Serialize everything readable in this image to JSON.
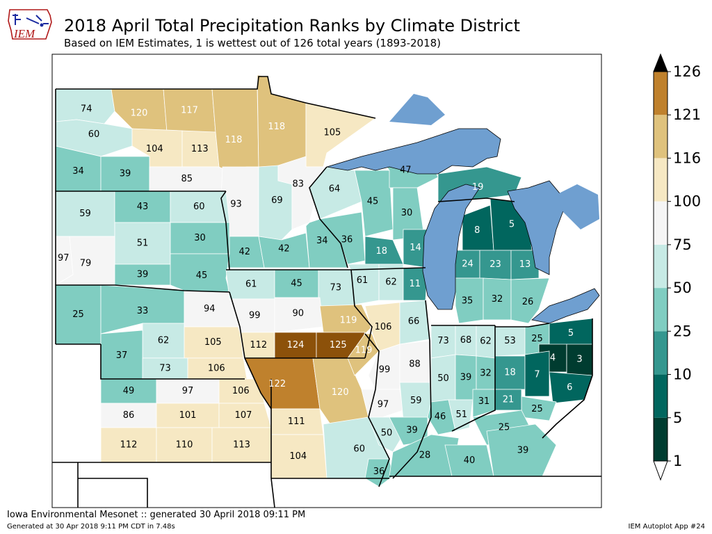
{
  "header": {
    "logo_text": "IEM",
    "title": "2018 April Total Precipitation Ranks by Climate District",
    "subtitle": "Based on IEM Estimates, 1 is wettest out of 126 total years (1893-2018)"
  },
  "footer": {
    "source": "Iowa Environmental Mesonet :: generated 30 April 2018 09:11 PM",
    "generated": "Generated at 30 Apr 2018 9:11 PM CDT in 7.48s",
    "app": "IEM Autoplot App #24"
  },
  "colors": {
    "lake": "#6f9fd0",
    "border": "#000000",
    "bins": [
      "#003c30",
      "#01665e",
      "#35978f",
      "#80cdc1",
      "#c7eae5",
      "#f5f5f5",
      "#f6e8c3",
      "#dfc27d",
      "#bf812d",
      "#8c510a",
      "#543005"
    ]
  },
  "colorbar": {
    "ticks": [
      "1",
      "5",
      "10",
      "25",
      "50",
      "75",
      "100",
      "116",
      "121",
      "126"
    ],
    "extend": "both"
  },
  "districts": [
    {
      "state": "ND",
      "rank": 74
    },
    {
      "state": "ND",
      "rank": 120
    },
    {
      "state": "ND",
      "rank": 117
    },
    {
      "state": "ND",
      "rank": 60
    },
    {
      "state": "ND",
      "rank": 104
    },
    {
      "state": "ND",
      "rank": 113
    },
    {
      "state": "ND",
      "rank": 34
    },
    {
      "state": "ND",
      "rank": 39
    },
    {
      "state": "ND",
      "rank": 85
    },
    {
      "state": "MN",
      "rank": 118
    },
    {
      "state": "MN",
      "rank": 118
    },
    {
      "state": "MN",
      "rank": 105
    },
    {
      "state": "MN",
      "rank": 93
    },
    {
      "state": "MN",
      "rank": 69
    },
    {
      "state": "MN",
      "rank": 83
    },
    {
      "state": "MN",
      "rank": 42
    },
    {
      "state": "MN",
      "rank": 42
    },
    {
      "state": "MN",
      "rank": 34
    },
    {
      "state": "SD",
      "rank": 59
    },
    {
      "state": "SD",
      "rank": 43
    },
    {
      "state": "SD",
      "rank": 60
    },
    {
      "state": "SD",
      "rank": 51
    },
    {
      "state": "SD",
      "rank": 30
    },
    {
      "state": "SD",
      "rank": 97
    },
    {
      "state": "SD",
      "rank": 79
    },
    {
      "state": "SD",
      "rank": 39
    },
    {
      "state": "SD",
      "rank": 45
    },
    {
      "state": "NE",
      "rank": 25
    },
    {
      "state": "NE",
      "rank": 33
    },
    {
      "state": "NE",
      "rank": 94
    },
    {
      "state": "NE",
      "rank": 62
    },
    {
      "state": "NE",
      "rank": 105
    },
    {
      "state": "NE",
      "rank": 37
    },
    {
      "state": "NE",
      "rank": 73
    },
    {
      "state": "NE",
      "rank": 106
    },
    {
      "state": "KS",
      "rank": 49
    },
    {
      "state": "KS",
      "rank": 97
    },
    {
      "state": "KS",
      "rank": 106
    },
    {
      "state": "KS",
      "rank": 86
    },
    {
      "state": "KS",
      "rank": 101
    },
    {
      "state": "KS",
      "rank": 107
    },
    {
      "state": "KS",
      "rank": 112
    },
    {
      "state": "KS",
      "rank": 110
    },
    {
      "state": "KS",
      "rank": 113
    },
    {
      "state": "IA",
      "rank": 61
    },
    {
      "state": "IA",
      "rank": 45
    },
    {
      "state": "IA",
      "rank": 73
    },
    {
      "state": "IA",
      "rank": 99
    },
    {
      "state": "IA",
      "rank": 90
    },
    {
      "state": "IA",
      "rank": 119
    },
    {
      "state": "IA",
      "rank": 112
    },
    {
      "state": "IA",
      "rank": 124
    },
    {
      "state": "IA",
      "rank": 125
    },
    {
      "state": "MO",
      "rank": 122
    },
    {
      "state": "MO",
      "rank": 120
    },
    {
      "state": "MO",
      "rank": 119
    },
    {
      "state": "MO",
      "rank": 111
    },
    {
      "state": "MO",
      "rank": 104
    },
    {
      "state": "MO",
      "rank": 60
    },
    {
      "state": "WI",
      "rank": 64
    },
    {
      "state": "WI",
      "rank": 45
    },
    {
      "state": "WI",
      "rank": 47
    },
    {
      "state": "WI",
      "rank": 30
    },
    {
      "state": "WI",
      "rank": 36
    },
    {
      "state": "WI",
      "rank": 18
    },
    {
      "state": "WI",
      "rank": 14
    },
    {
      "state": "WI",
      "rank": 61
    },
    {
      "state": "WI",
      "rank": 62
    },
    {
      "state": "WI",
      "rank": 11
    },
    {
      "state": "IL",
      "rank": 106
    },
    {
      "state": "IL",
      "rank": 66
    },
    {
      "state": "IL",
      "rank": 99
    },
    {
      "state": "IL",
      "rank": 88
    },
    {
      "state": "IL",
      "rank": 97
    },
    {
      "state": "IL",
      "rank": 59
    },
    {
      "state": "IL",
      "rank": 50
    },
    {
      "state": "IL",
      "rank": 39
    },
    {
      "state": "IL",
      "rank": 36
    },
    {
      "state": "MI",
      "rank": 19
    },
    {
      "state": "MI",
      "rank": 8
    },
    {
      "state": "MI",
      "rank": 5
    },
    {
      "state": "MI",
      "rank": 24
    },
    {
      "state": "MI",
      "rank": 23
    },
    {
      "state": "MI",
      "rank": 13
    },
    {
      "state": "MI",
      "rank": 35
    },
    {
      "state": "MI",
      "rank": 32
    },
    {
      "state": "MI",
      "rank": 26
    },
    {
      "state": "IN",
      "rank": 73
    },
    {
      "state": "IN",
      "rank": 68
    },
    {
      "state": "IN",
      "rank": 62
    },
    {
      "state": "IN",
      "rank": 50
    },
    {
      "state": "IN",
      "rank": 39
    },
    {
      "state": "IN",
      "rank": 32
    },
    {
      "state": "IN",
      "rank": 51
    },
    {
      "state": "IN",
      "rank": 31
    },
    {
      "state": "IN",
      "rank": 46
    },
    {
      "state": "OH",
      "rank": 53
    },
    {
      "state": "OH",
      "rank": 25
    },
    {
      "state": "OH",
      "rank": 5
    },
    {
      "state": "OH",
      "rank": 4
    },
    {
      "state": "OH",
      "rank": 3
    },
    {
      "state": "OH",
      "rank": 18
    },
    {
      "state": "OH",
      "rank": 7
    },
    {
      "state": "OH",
      "rank": 6
    },
    {
      "state": "OH",
      "rank": 21
    },
    {
      "state": "OH",
      "rank": 25
    },
    {
      "state": "KY",
      "rank": 25
    },
    {
      "state": "KY",
      "rank": 28
    },
    {
      "state": "KY",
      "rank": 40
    },
    {
      "state": "KY",
      "rank": 39
    }
  ]
}
